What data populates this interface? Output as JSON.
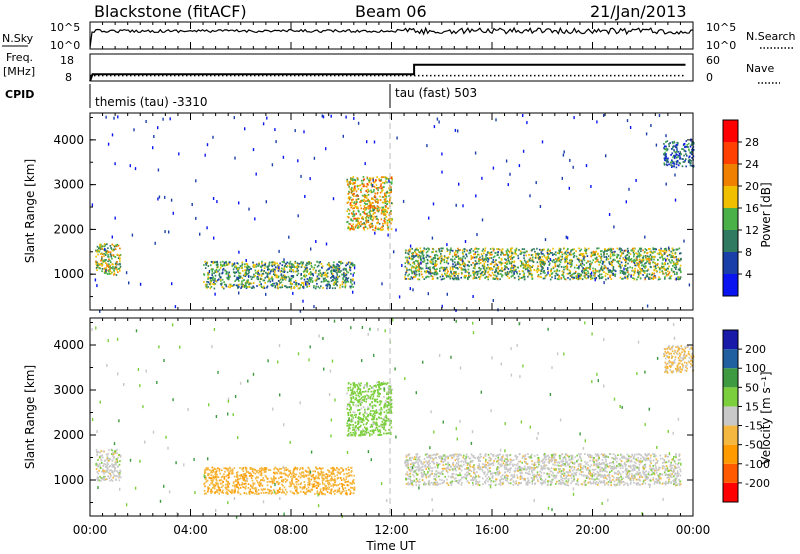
{
  "header": {
    "title": "Blackstone (fitACF)",
    "beam": "Beam 06",
    "date": "21/Jan/2013"
  },
  "top_panels": {
    "nsky_label": "N.Sky",
    "nsearch_label": "N.Search",
    "nsky_ticks": [
      "10^5",
      "10^0"
    ],
    "nsearch_ticks": [
      "10^5",
      "10^0"
    ],
    "freq_label_1": "Freq.",
    "freq_label_2": "[MHz]",
    "freq_ticks": [
      "18",
      "8"
    ],
    "nave_label": "Nave",
    "nave_ticks": [
      "60",
      "0"
    ],
    "cpid_label": "CPID",
    "cpid_1": "themis (tau) -3310",
    "cpid_2": "tau (fast) 503"
  },
  "colors": {
    "power": [
      "#0a14f0",
      "#1a3fa8",
      "#2f7a60",
      "#4ab048",
      "#f0c000",
      "#f08000",
      "#ff4000",
      "#ff0000"
    ],
    "velocity": [
      "#ff0000",
      "#ff5a00",
      "#ff9a00",
      "#f4b840",
      "#c8c8c8",
      "#7ccf3c",
      "#3e9a40",
      "#2060a0",
      "#1a1aa8"
    ]
  },
  "power_scale": {
    "label": "Power [dB]",
    "ticks": [
      "4",
      "8",
      "12",
      "16",
      "20",
      "24",
      "28"
    ]
  },
  "velocity_scale": {
    "label": "Velocity [m s⁻¹]",
    "ticks": [
      "-200",
      "-100",
      "-50",
      "-15",
      "15",
      "50",
      "100",
      "200"
    ]
  },
  "chart_data": [
    {
      "type": "heatmap",
      "name": "power",
      "ylabel": "Slant Range [km]",
      "ylim": [
        200,
        4600
      ],
      "yticks": [
        "1000",
        "2000",
        "3000",
        "4000"
      ],
      "xlim": [
        0,
        24
      ],
      "xticks": [
        "00:00",
        "04:00",
        "08:00",
        "12:00",
        "16:00",
        "20:00",
        "00:00"
      ],
      "echo_regions": [
        {
          "t": [
            0.2,
            1.2
          ],
          "range": [
            1000,
            1700
          ],
          "power": 18
        },
        {
          "t": [
            4.5,
            10.5
          ],
          "range": [
            700,
            1300
          ],
          "power": 14
        },
        {
          "t": [
            10.2,
            12.0
          ],
          "range": [
            2000,
            3200
          ],
          "power": 20
        },
        {
          "t": [
            12.5,
            23.5
          ],
          "range": [
            900,
            1600
          ],
          "power": 16
        },
        {
          "t": [
            22.8,
            24.0
          ],
          "range": [
            3400,
            4000
          ],
          "power": 10
        }
      ]
    },
    {
      "type": "heatmap",
      "name": "velocity",
      "ylabel": "Slant Range [km]",
      "xlabel": "Time UT",
      "ylim": [
        200,
        4600
      ],
      "yticks": [
        "1000",
        "2000",
        "3000",
        "4000"
      ],
      "xlim": [
        0,
        24
      ],
      "xticks": [
        "00:00",
        "04:00",
        "08:00",
        "12:00",
        "16:00",
        "20:00",
        "00:00"
      ],
      "echo_regions": [
        {
          "t": [
            0.2,
            1.2
          ],
          "range": [
            1000,
            1700
          ],
          "velocity": 0
        },
        {
          "t": [
            4.5,
            10.5
          ],
          "range": [
            700,
            1300
          ],
          "velocity": -40
        },
        {
          "t": [
            10.2,
            12.0
          ],
          "range": [
            2000,
            3200
          ],
          "velocity": 30
        },
        {
          "t": [
            12.5,
            23.5
          ],
          "range": [
            900,
            1600
          ],
          "velocity": 0
        },
        {
          "t": [
            22.8,
            24.0
          ],
          "range": [
            3400,
            4000
          ],
          "velocity": -20
        }
      ]
    },
    {
      "type": "line",
      "name": "frequency",
      "x": [
        0,
        0.1,
        12.9,
        12.9,
        23.7
      ],
      "y": [
        8,
        10.5,
        10.5,
        14,
        14
      ]
    },
    {
      "type": "line",
      "name": "nave",
      "x": [
        0,
        12.9,
        12.9,
        23.7
      ],
      "y": [
        12,
        12,
        12,
        12
      ]
    }
  ]
}
